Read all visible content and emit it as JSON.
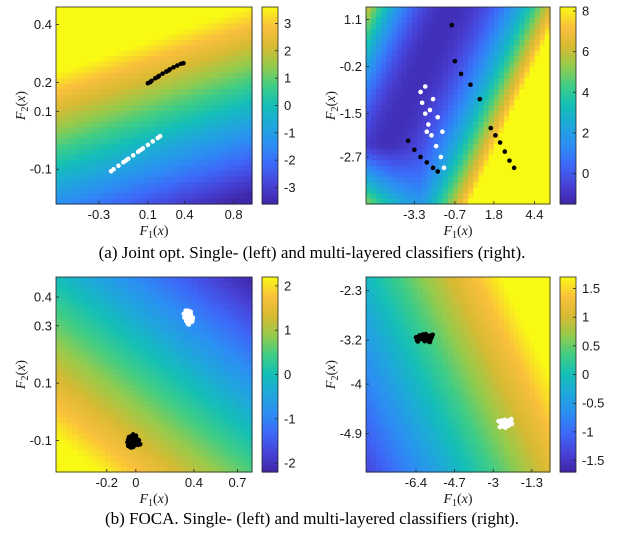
{
  "captions": {
    "a": "(a) Joint opt. Single- (left) and multi-layered classifiers (right).",
    "b": "(b) FOCA. Single- (left) and multi-layered classifiers (right)."
  },
  "colors": {
    "colormap": [
      "#3e26a8",
      "#4743d8",
      "#3d69f8",
      "#2c8ef3",
      "#1fa7db",
      "#14bfb7",
      "#40cd85",
      "#95cb4c",
      "#d8ba33",
      "#fac03c",
      "#f9fa14"
    ],
    "class_a": "#000000",
    "class_b": "#ffffff"
  },
  "chart_data": [
    {
      "id": "a-left",
      "type": "heatmap-scatter",
      "title": "",
      "xlabel": "F_1(x)",
      "ylabel": "F_2(x)",
      "xlim": [
        -0.65,
        0.95
      ],
      "ylim": [
        -0.22,
        0.46
      ],
      "xticks": [
        -0.3,
        0.1,
        0.4,
        0.8
      ],
      "xticklabels": [
        "-0.3",
        "0.1",
        "0.4",
        "0.8"
      ],
      "yticks": [
        -0.1,
        0.1,
        0.2,
        0.4
      ],
      "yticklabels": [
        "-0.1",
        "0.1",
        "0.2",
        "0.4"
      ],
      "field": {
        "a": -1.6,
        "b": 11.0,
        "c": 0.0,
        "vmin": -3.6,
        "vmax": 3.6
      },
      "colorbar": {
        "ticks": [
          3,
          2,
          1,
          0,
          -1,
          -2,
          -3
        ],
        "ticklabels": [
          "3",
          "2",
          "1",
          "0",
          "-1",
          "-2",
          "-3"
        ],
        "vmin": -3.6,
        "vmax": 3.6
      },
      "series": [
        {
          "color": "#000000",
          "points": [
            [
              0.1,
              0.197
            ],
            [
              0.13,
              0.205
            ],
            [
              0.16,
              0.214
            ],
            [
              0.19,
              0.222
            ],
            [
              0.22,
              0.23
            ],
            [
              0.25,
              0.237
            ],
            [
              0.28,
              0.245
            ],
            [
              0.31,
              0.252
            ],
            [
              0.34,
              0.258
            ],
            [
              0.37,
              0.264
            ],
            [
              0.39,
              0.266
            ],
            [
              0.12,
              0.201
            ],
            [
              0.18,
              0.218
            ],
            [
              0.27,
              0.241
            ]
          ]
        },
        {
          "color": "#ffffff",
          "points": [
            [
              -0.18,
              -0.1
            ],
            [
              -0.14,
              -0.088
            ],
            [
              -0.1,
              -0.076
            ],
            [
              -0.06,
              -0.064
            ],
            [
              -0.02,
              -0.052
            ],
            [
              0.02,
              -0.04
            ],
            [
              0.06,
              -0.028
            ],
            [
              0.1,
              -0.016
            ],
            [
              0.14,
              -0.004
            ],
            [
              0.18,
              0.008
            ],
            [
              0.2,
              0.014
            ],
            [
              -0.08,
              -0.07
            ],
            [
              0.04,
              -0.034
            ],
            [
              -0.2,
              -0.107
            ]
          ]
        }
      ]
    },
    {
      "id": "a-right",
      "type": "heatmap-scatter",
      "title": "",
      "xlabel": "F_1(x)",
      "ylabel": "F_2(x)",
      "xlim": [
        -6.4,
        5.4
      ],
      "ylim": [
        -4.0,
        1.45
      ],
      "xticks": [
        -3.3,
        -0.7,
        1.8,
        4.4
      ],
      "xticklabels": [
        "-3.3",
        "-0.7",
        "1.8",
        "4.4"
      ],
      "yticks": [
        -2.7,
        -1.5,
        -0.2,
        1.1
      ],
      "yticklabels": [
        "-2.7",
        "-1.5",
        "-0.2",
        "1.1"
      ],
      "field": {
        "type": "valley",
        "vmin": -1.5,
        "vmax": 8.2
      },
      "colorbar": {
        "ticks": [
          8,
          6,
          4,
          2,
          0
        ],
        "ticklabels": [
          "8",
          "6",
          "4",
          "2",
          "0"
        ],
        "vmin": -1.5,
        "vmax": 8.2
      },
      "series": [
        {
          "color": "#000000",
          "points": [
            [
              -0.9,
              0.95
            ],
            [
              -0.7,
              -0.05
            ],
            [
              -0.3,
              -0.4
            ],
            [
              0.3,
              -0.7
            ],
            [
              0.9,
              -1.1
            ],
            [
              1.6,
              -1.9
            ],
            [
              1.9,
              -2.1
            ],
            [
              2.2,
              -2.3
            ],
            [
              2.5,
              -2.55
            ],
            [
              2.8,
              -2.8
            ],
            [
              3.1,
              -3.0
            ],
            [
              -3.7,
              -2.25
            ],
            [
              -3.3,
              -2.5
            ],
            [
              -2.9,
              -2.7
            ],
            [
              -2.5,
              -2.85
            ],
            [
              -2.1,
              -3.0
            ],
            [
              -1.8,
              -3.1
            ]
          ]
        },
        {
          "color": "#ffffff",
          "points": [
            [
              -2.9,
              -0.9
            ],
            [
              -2.8,
              -1.2
            ],
            [
              -2.6,
              -1.5
            ],
            [
              -2.4,
              -1.8
            ],
            [
              -2.2,
              -2.1
            ],
            [
              -1.9,
              -2.4
            ],
            [
              -1.6,
              -2.7
            ],
            [
              -1.4,
              -3.0
            ],
            [
              -2.1,
              -1.1
            ],
            [
              -1.8,
              -1.6
            ],
            [
              -1.5,
              -2.0
            ],
            [
              -2.6,
              -0.75
            ],
            [
              -2.3,
              -1.4
            ],
            [
              -2.5,
              -2.0
            ]
          ]
        }
      ]
    },
    {
      "id": "b-left",
      "type": "heatmap-scatter",
      "title": "",
      "xlabel": "F_1(x)",
      "ylabel": "F_2(x)",
      "xlim": [
        -0.55,
        0.8
      ],
      "ylim": [
        -0.21,
        0.47
      ],
      "xticks": [
        -0.2,
        0.0,
        0.4,
        0.7
      ],
      "xticklabels": [
        "-0.2",
        "0",
        "0.4",
        "0.7"
      ],
      "yticks": [
        -0.1,
        0.1,
        0.3,
        0.4
      ],
      "yticklabels": [
        "-0.1",
        "0.1",
        "0.3",
        "0.4"
      ],
      "field": {
        "a": -1.6,
        "b": -4.0,
        "c": 0.95,
        "vmin": -2.2,
        "vmax": 2.2
      },
      "colorbar": {
        "ticks": [
          2,
          1,
          0,
          -1,
          -2
        ],
        "ticklabels": [
          "2",
          "1",
          "0",
          "-1",
          "-2"
        ],
        "vmin": -2.2,
        "vmax": 2.2
      },
      "series": [
        {
          "color": "#000000",
          "cx": -0.02,
          "cy": -0.1,
          "sx": 0.05,
          "sy": 0.03,
          "n": 70
        },
        {
          "color": "#ffffff",
          "cx": 0.36,
          "cy": 0.33,
          "sx": 0.05,
          "sy": 0.03,
          "n": 70
        }
      ]
    },
    {
      "id": "b-right",
      "type": "heatmap-scatter",
      "title": "",
      "xlabel": "F_1(x)",
      "ylabel": "F_2(x)",
      "xlim": [
        -8.6,
        -0.5
      ],
      "ylim": [
        -5.6,
        -2.05
      ],
      "xticks": [
        -6.4,
        -4.7,
        -3.0,
        -1.3
      ],
      "xticklabels": [
        "-6.4",
        "-4.7",
        "-3",
        "-1.3"
      ],
      "yticks": [
        -4.9,
        -4.0,
        -3.2,
        -2.3
      ],
      "yticklabels": [
        "-4.9",
        "-4",
        "-3.2",
        "-2.3"
      ],
      "field": {
        "a": 0.3,
        "b": 0.35,
        "c": 3.2,
        "vmin": -1.7,
        "vmax": 1.7
      },
      "colorbar": {
        "ticks": [
          1.5,
          1,
          0.5,
          0,
          -0.5,
          -1,
          -1.5
        ],
        "ticklabels": [
          "1.5",
          "1",
          "0.5",
          "0",
          "-0.5",
          "-1",
          "-1.5"
        ],
        "vmin": -1.7,
        "vmax": 1.7
      },
      "series": [
        {
          "color": "#000000",
          "cx": -6.0,
          "cy": -3.15,
          "sx": 0.55,
          "sy": 0.1,
          "n": 70
        },
        {
          "color": "#ffffff",
          "cx": -2.4,
          "cy": -4.72,
          "sx": 0.35,
          "sy": 0.1,
          "n": 45
        }
      ]
    }
  ]
}
